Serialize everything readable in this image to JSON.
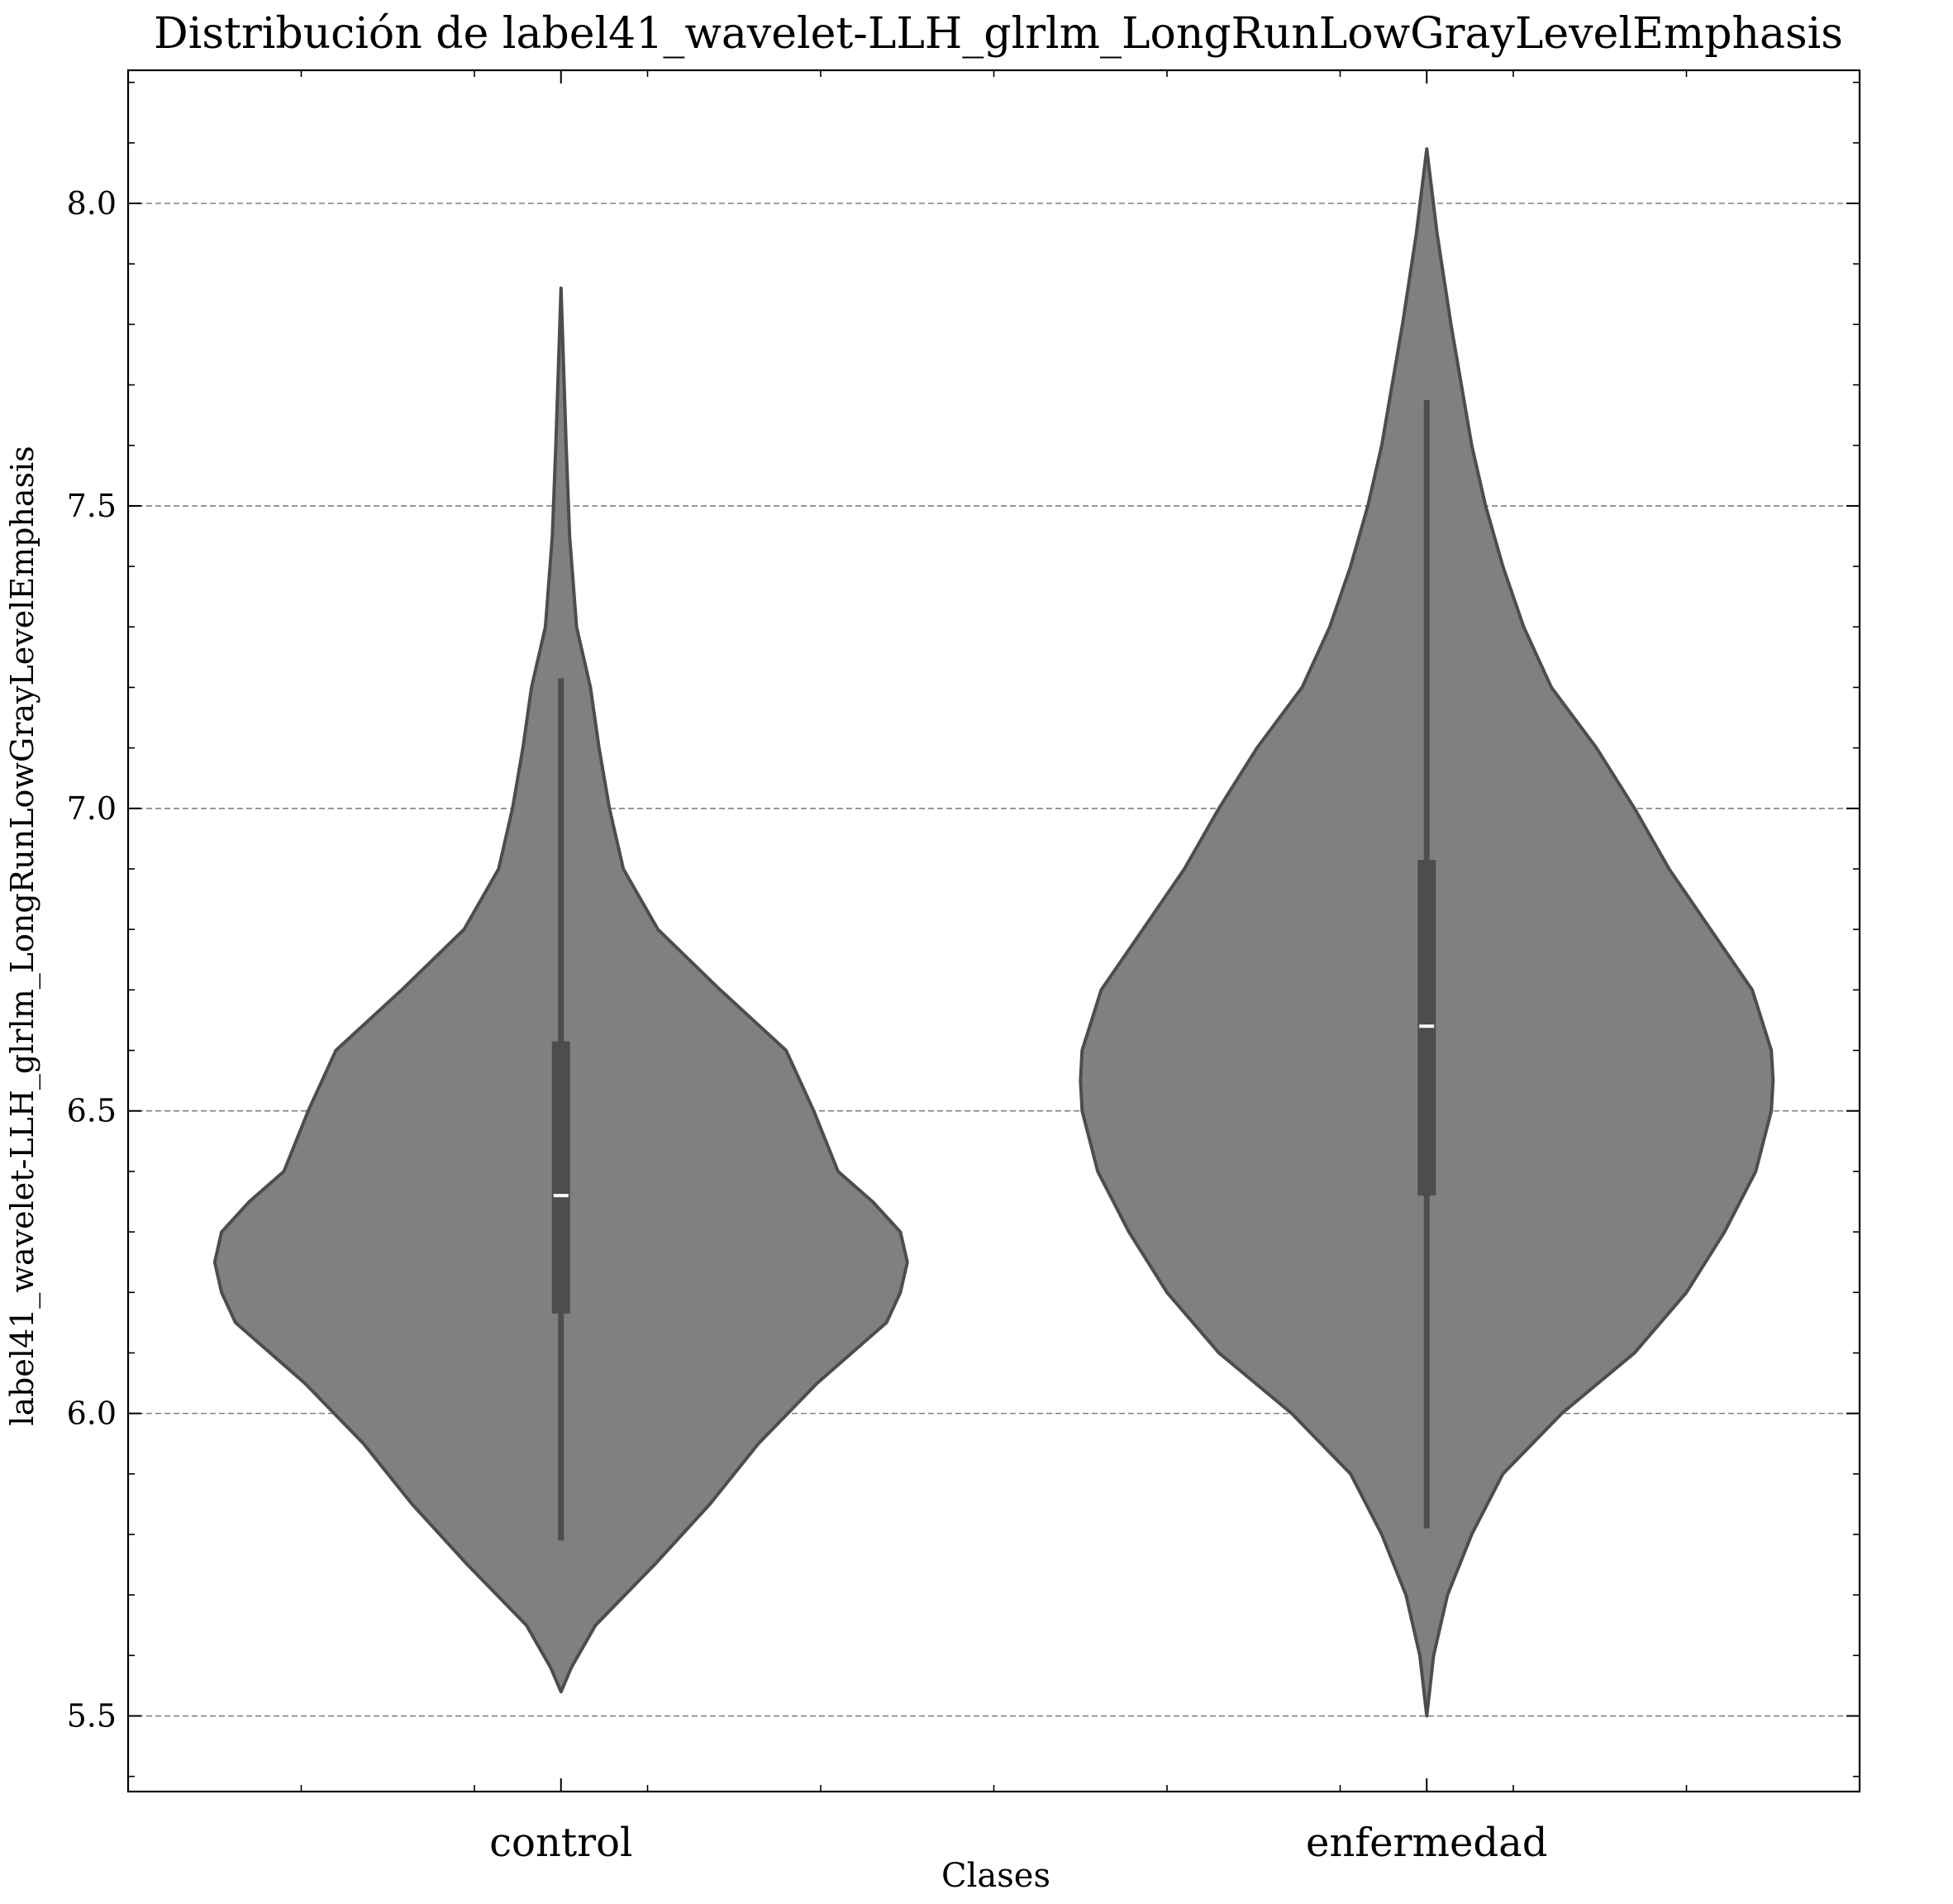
{
  "chart_data": {
    "type": "violin",
    "title": "Distribución de label41_wavelet-LLH_glrlm_LongRunLowGrayLevelEmphasis",
    "xlabel": "Clases",
    "ylabel": "label41_wavelet-LLH_glrlm_LongRunLowGrayLevelEmphasis",
    "categories": [
      "control",
      "enfermedad"
    ],
    "ylim": [
      5.375,
      8.22
    ],
    "yticks": [
      5.5,
      6.0,
      6.5,
      7.0,
      7.5,
      8.0
    ],
    "ytick_labels": [
      "5.5",
      "6.0",
      "6.5",
      "7.0",
      "7.5",
      "8.0"
    ],
    "grid": "horizontal-dashed",
    "colors": {
      "violin_fill": "#808080",
      "violin_edge": "#4d4d4d",
      "grid": "#808080",
      "median": "#ffffff"
    },
    "series": [
      {
        "name": "control",
        "min": 5.79,
        "q1": 6.165,
        "median": 6.36,
        "q3": 6.615,
        "max": 7.215,
        "kde_extent": [
          5.54,
          7.86
        ],
        "density_profile": [
          [
            5.54,
            0.0
          ],
          [
            5.58,
            0.03
          ],
          [
            5.65,
            0.1
          ],
          [
            5.75,
            0.27
          ],
          [
            5.85,
            0.43
          ],
          [
            5.95,
            0.57
          ],
          [
            6.05,
            0.74
          ],
          [
            6.15,
            0.94
          ],
          [
            6.2,
            0.98
          ],
          [
            6.25,
            1.0
          ],
          [
            6.3,
            0.98
          ],
          [
            6.35,
            0.9
          ],
          [
            6.4,
            0.8
          ],
          [
            6.5,
            0.73
          ],
          [
            6.6,
            0.65
          ],
          [
            6.7,
            0.46
          ],
          [
            6.8,
            0.28
          ],
          [
            6.9,
            0.18
          ],
          [
            7.0,
            0.14
          ],
          [
            7.1,
            0.11
          ],
          [
            7.2,
            0.085
          ],
          [
            7.3,
            0.045
          ],
          [
            7.45,
            0.025
          ],
          [
            7.6,
            0.015
          ],
          [
            7.86,
            0.0
          ]
        ]
      },
      {
        "name": "enfermedad",
        "min": 5.81,
        "q1": 6.36,
        "median": 6.64,
        "q3": 6.915,
        "max": 7.675,
        "kde_extent": [
          5.5,
          8.09
        ],
        "density_profile": [
          [
            5.5,
            0.0
          ],
          [
            5.6,
            0.02
          ],
          [
            5.7,
            0.06
          ],
          [
            5.8,
            0.13
          ],
          [
            5.9,
            0.22
          ],
          [
            6.0,
            0.39
          ],
          [
            6.1,
            0.6
          ],
          [
            6.2,
            0.75
          ],
          [
            6.3,
            0.86
          ],
          [
            6.4,
            0.95
          ],
          [
            6.5,
            0.995
          ],
          [
            6.55,
            1.0
          ],
          [
            6.6,
            0.995
          ],
          [
            6.7,
            0.94
          ],
          [
            6.8,
            0.82
          ],
          [
            6.9,
            0.7
          ],
          [
            7.0,
            0.6
          ],
          [
            7.1,
            0.49
          ],
          [
            7.2,
            0.36
          ],
          [
            7.3,
            0.28
          ],
          [
            7.4,
            0.22
          ],
          [
            7.5,
            0.17
          ],
          [
            7.6,
            0.13
          ],
          [
            7.8,
            0.07
          ],
          [
            7.95,
            0.03
          ],
          [
            8.09,
            0.0
          ]
        ]
      }
    ]
  }
}
